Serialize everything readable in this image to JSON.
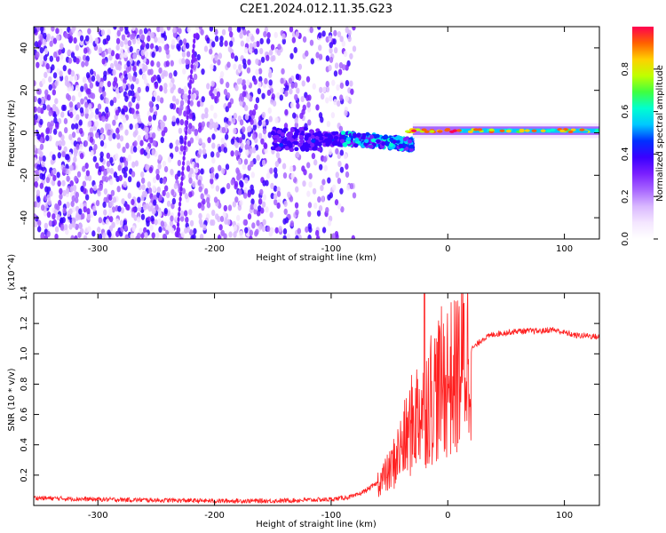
{
  "title": "C2E1.2024.012.11.35.G23",
  "colors": {
    "background": "#ffffff",
    "snr_line": "#ff2020",
    "axis": "#000000",
    "colormap": [
      "#ffffff",
      "#f4e6ff",
      "#d9b8ff",
      "#a866ff",
      "#7a1fff",
      "#3a00ff",
      "#0030ff",
      "#00c8ff",
      "#00ffd0",
      "#40ff40",
      "#c0ff00",
      "#ffd000",
      "#ff6000",
      "#ff0050"
    ]
  },
  "chart_data": [
    {
      "type": "heatmap",
      "xlabel": "Height of straight line (km)",
      "ylabel": "Frequency (Hz)",
      "xlim": [
        -355,
        130
      ],
      "ylim": [
        -50,
        50
      ],
      "xticks": [
        -300,
        -200,
        -100,
        0,
        100
      ],
      "yticks": [
        -40,
        -20,
        0,
        20,
        40
      ],
      "colorbar": {
        "label": "Normalized spectral amplitude",
        "range": [
          0,
          1
        ],
        "ticks": [
          0.0,
          0.2,
          0.4,
          0.6,
          0.8
        ]
      },
      "features": [
        {
          "x_range": [
            -355,
            -100
          ],
          "f_range": [
            -50,
            50
          ],
          "description": "broadband scattered noise"
        },
        {
          "x_range": [
            -150,
            -30
          ],
          "f_center": -3,
          "description": "concentrated band with drift"
        },
        {
          "x_range": [
            -30,
            130
          ],
          "f_center": 1,
          "description": "narrow carrier band, high amplitude"
        }
      ]
    },
    {
      "type": "line",
      "xlabel": "Height of straight line (km)",
      "ylabel": "SNR (10 * v/v)",
      "y_multiplier": "(x10^4)",
      "xlim": [
        -355,
        130
      ],
      "ylim": [
        0,
        1.4
      ],
      "xticks": [
        -300,
        -200,
        -100,
        0,
        100
      ],
      "yticks": [
        0.2,
        0.4,
        0.6,
        0.8,
        1.0,
        1.2,
        1.4
      ],
      "series": [
        {
          "x": [
            -355,
            -300,
            -250,
            -200,
            -150,
            -100,
            -80,
            -70,
            -60,
            -50,
            -45,
            -40,
            -35,
            -30,
            -25,
            -20,
            -15,
            -10,
            -5,
            0,
            5,
            10,
            15,
            20,
            25,
            30,
            40,
            60,
            80,
            90,
            100,
            110,
            120,
            130
          ],
          "y": [
            0.05,
            0.04,
            0.035,
            0.03,
            0.03,
            0.04,
            0.06,
            0.1,
            0.15,
            0.22,
            0.3,
            0.38,
            0.45,
            0.55,
            0.62,
            0.68,
            0.72,
            0.76,
            0.8,
            0.85,
            0.82,
            0.9,
            0.98,
            1.03,
            1.06,
            1.1,
            1.13,
            1.15,
            1.15,
            1.16,
            1.14,
            1.12,
            1.12,
            1.11
          ]
        }
      ]
    }
  ]
}
